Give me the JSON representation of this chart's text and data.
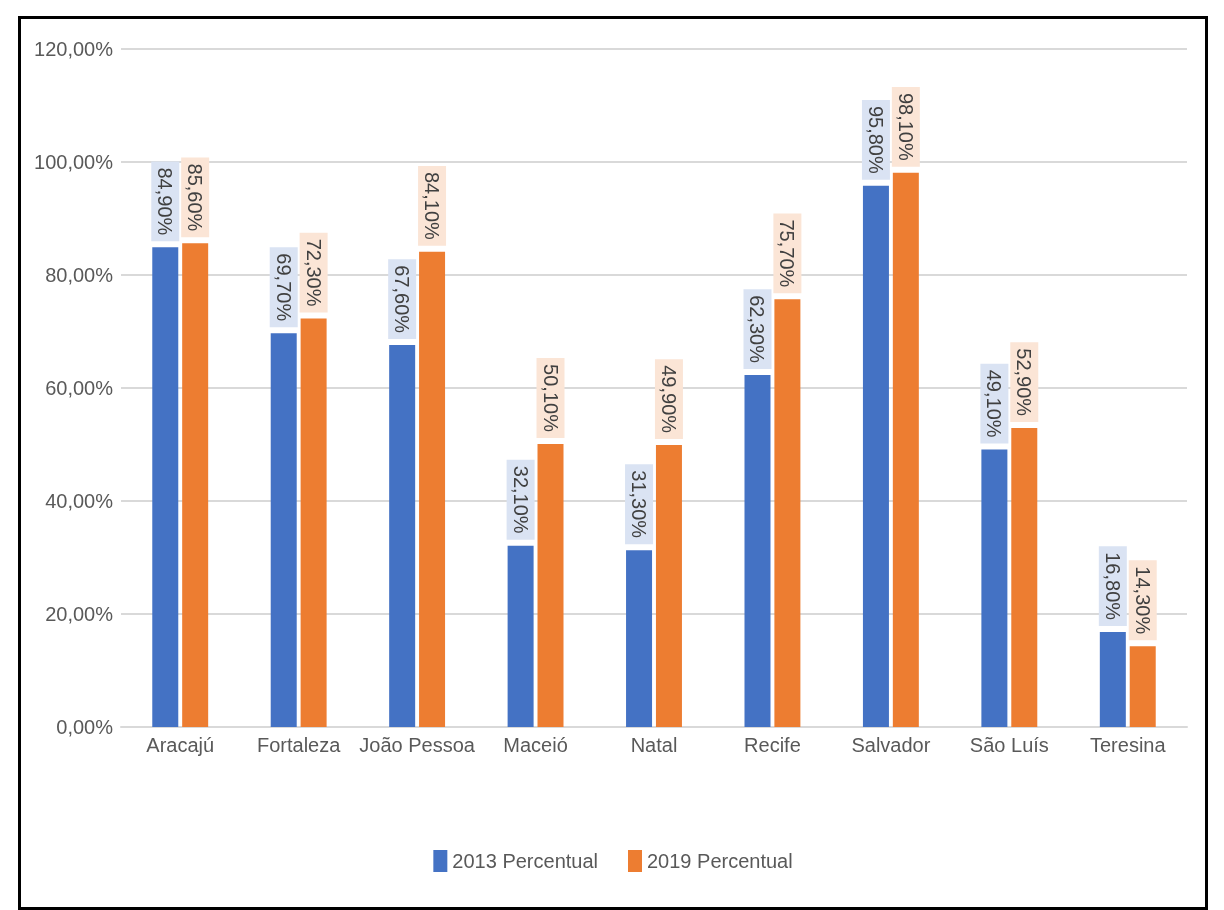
{
  "chart_data": {
    "type": "bar",
    "categories": [
      "Aracajú",
      "Fortaleza",
      "João Pessoa",
      "Maceió",
      "Natal",
      "Recife",
      "Salvador",
      "São Luís",
      "Teresina"
    ],
    "series": [
      {
        "name": "2013 Percentual",
        "color": "#4472c4",
        "values": [
          84.9,
          69.7,
          67.6,
          32.1,
          31.3,
          62.3,
          95.8,
          49.1,
          16.8
        ],
        "value_labels": [
          "84,90%",
          "69,70%",
          "67,60%",
          "32,10%",
          "31,30%",
          "62,30%",
          "95,80%",
          "49,10%",
          "16,80%"
        ]
      },
      {
        "name": "2019 Percentual",
        "color": "#ed7d31",
        "values": [
          85.6,
          72.3,
          84.1,
          50.1,
          49.9,
          75.7,
          98.1,
          52.9,
          14.3
        ],
        "value_labels": [
          "85,60%",
          "72,30%",
          "84,10%",
          "50,10%",
          "49,90%",
          "75,70%",
          "98,10%",
          "52,90%",
          "14,30%"
        ]
      }
    ],
    "ylim": [
      0,
      120
    ],
    "yticks": [
      {
        "value": 0,
        "label": "0,00%"
      },
      {
        "value": 20,
        "label": "20,00%"
      },
      {
        "value": 40,
        "label": "40,00%"
      },
      {
        "value": 60,
        "label": "60,00%"
      },
      {
        "value": 80,
        "label": "80,00%"
      },
      {
        "value": 100,
        "label": "100,00%"
      },
      {
        "value": 120,
        "label": "120,00%"
      }
    ],
    "grid": "y",
    "legend": "bottom"
  }
}
